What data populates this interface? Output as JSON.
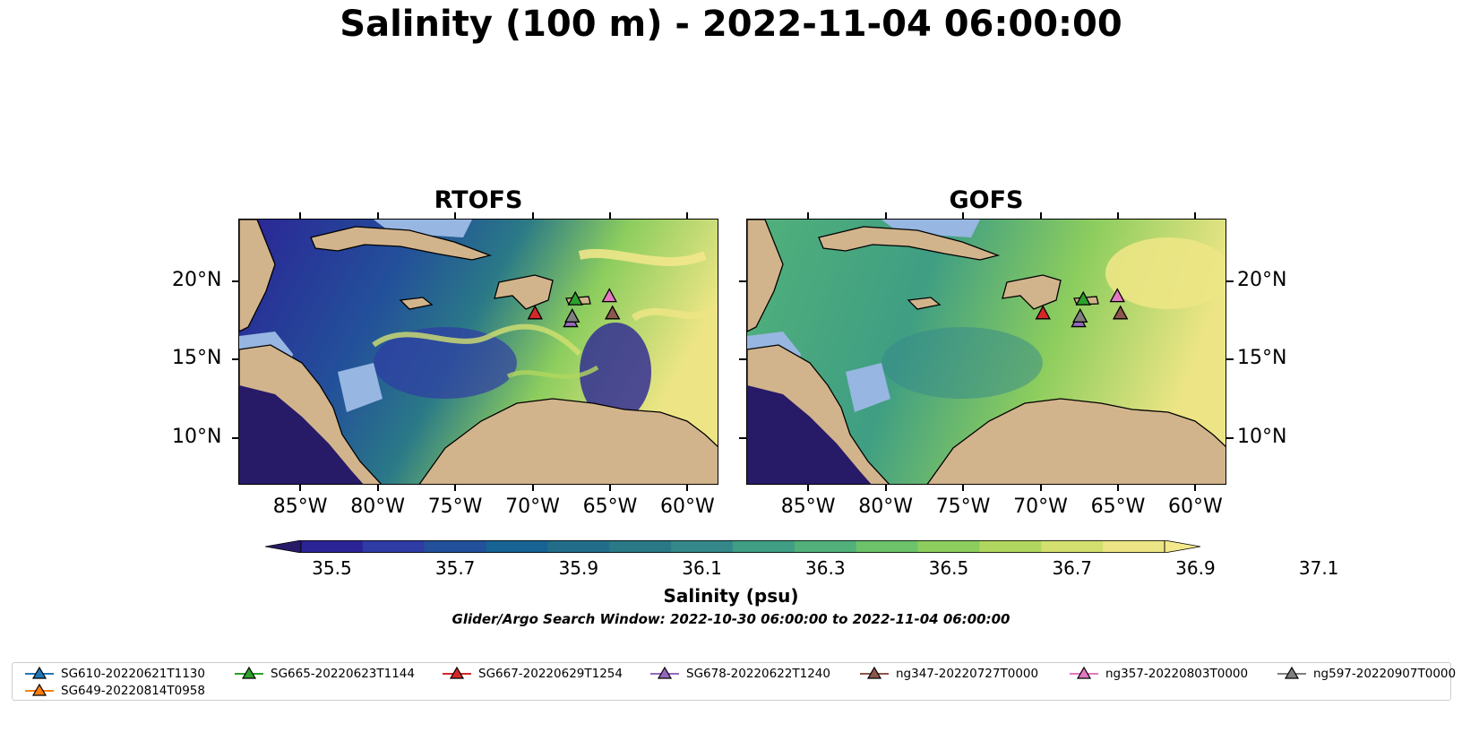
{
  "figure": {
    "title": "Salinity (100 m) - 2022-11-04 06:00:00",
    "window_text": "Glider/Argo Search Window: 2022-10-30 06:00:00 to 2022-11-04 06:00:00"
  },
  "panels": [
    {
      "title": "RTOFS"
    },
    {
      "title": "GOFS"
    }
  ],
  "axes": {
    "lon_labels": [
      "85°W",
      "80°W",
      "75°W",
      "70°W",
      "65°W",
      "60°W"
    ],
    "lat_labels": [
      "20°N",
      "15°N",
      "10°N"
    ]
  },
  "colorbar": {
    "title": "Salinity (psu)",
    "ticks": [
      "35.5",
      "35.7",
      "35.9",
      "36.1",
      "36.3",
      "36.5",
      "36.7",
      "36.9",
      "37.1"
    ],
    "colors": [
      "#271a67",
      "#2b2496",
      "#2f3ca5",
      "#23509a",
      "#176393",
      "#226e8a",
      "#2a7987",
      "#348889",
      "#3f9e83",
      "#52b17a",
      "#6cc36a",
      "#8ccd5e",
      "#b1d65f",
      "#d3e070",
      "#ede585",
      "#f4e88c"
    ],
    "extend": "both"
  },
  "map_colors": {
    "land": "#d2b48c",
    "shallow_water": "#97b6e1",
    "border": "#000000"
  },
  "stations": [
    {
      "id": "SG667-20220629T1254",
      "color": "#d62728",
      "lon": -69.9,
      "lat": 18.0
    },
    {
      "id": "SG665-20220623T1144",
      "color": "#2ca02c",
      "lon": -67.3,
      "lat": 18.9
    },
    {
      "id": "ng357-20220803T0000",
      "color": "#e377c2",
      "lon": -65.1,
      "lat": 19.1
    },
    {
      "id": "SG678-20220622T1240",
      "color": "#9467bd",
      "lon": -67.6,
      "lat": 17.5
    },
    {
      "id": "ng597-20220907T0000",
      "color": "#7f7f7f",
      "lon": -67.5,
      "lat": 17.8
    },
    {
      "id": "ng347-20220727T0000",
      "color": "#8c564b",
      "lon": -64.9,
      "lat": 18.0
    }
  ],
  "legend": [
    {
      "label": "SG610-20220621T1130",
      "color": "#1f77b4"
    },
    {
      "label": "SG665-20220623T1144",
      "color": "#2ca02c"
    },
    {
      "label": "SG667-20220629T1254",
      "color": "#d62728"
    },
    {
      "label": "SG678-20220622T1240",
      "color": "#9467bd"
    },
    {
      "label": "ng347-20220727T0000",
      "color": "#8c564b"
    },
    {
      "label": "ng357-20220803T0000",
      "color": "#e377c2"
    },
    {
      "label": "ng597-20220907T0000",
      "color": "#7f7f7f"
    },
    {
      "label": "SG649-20220814T0958",
      "color": "#ff7f0e"
    }
  ]
}
